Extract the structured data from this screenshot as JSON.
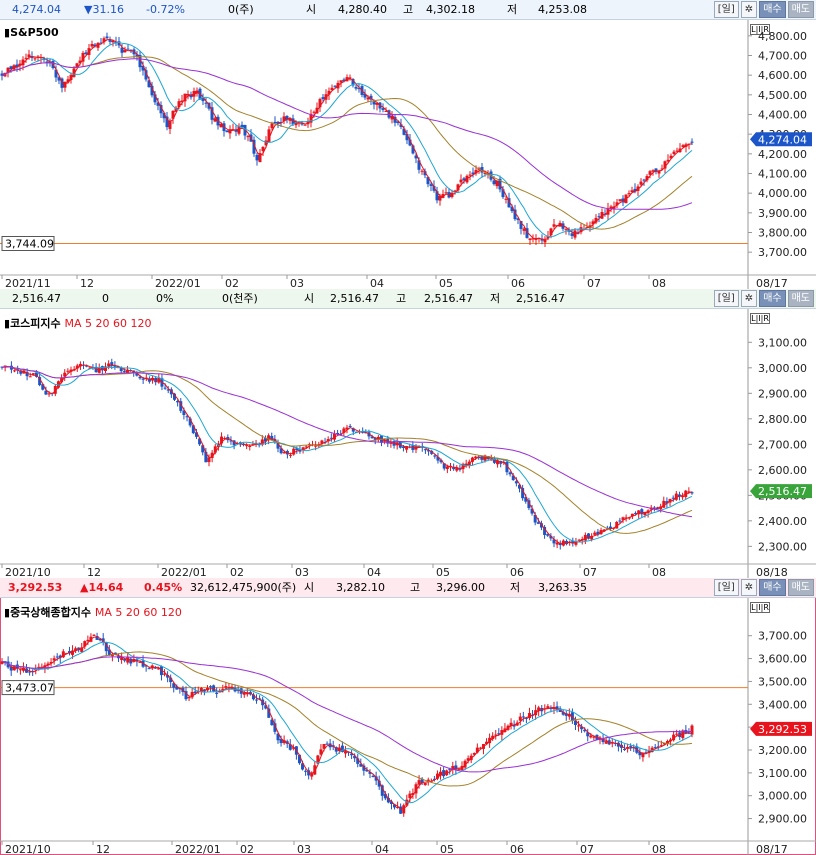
{
  "panels": [
    {
      "key": "sp",
      "header": {
        "price": "4,274.04",
        "change": "▼31.16",
        "pct": "-0.72%",
        "volume": "0(주)",
        "open_label": "시",
        "open": "4,280.40",
        "high_label": "고",
        "high": "4,302.18",
        "low_label": "저",
        "low": "4,253.08",
        "period": "[일]",
        "buy": "매수",
        "sell": "매도"
      },
      "title": "S&P500",
      "ma_label": "",
      "y_ticks": [
        "4,800.00",
        "4,700.00",
        "4,600.00",
        "4,500.00",
        "4,400.00",
        "4,300.00",
        "4,200.00",
        "4,100.00",
        "4,000.00",
        "3,900.00",
        "3,800.00",
        "3,700.00"
      ],
      "x_ticks": [
        "2021/11",
        "12",
        "2022/01",
        "02",
        "03",
        "04",
        "05",
        "06",
        "07",
        "08"
      ],
      "end_date": "08/17",
      "current_badge": "4,274.04",
      "ref_badge": "3,744.09",
      "colors": {
        "up": "#e8141d",
        "down": "#1c55c7",
        "ma5": "#e8141d",
        "ma20": "#1da7d4",
        "ma60": "#a5812b",
        "ma120": "#9b2fd6",
        "ref": "#f07c2c",
        "badge": "#1c55c7"
      }
    },
    {
      "key": "kospi",
      "header": {
        "price": "2,516.47",
        "change": "0",
        "pct": "0%",
        "volume": "0(천주)",
        "open_label": "시",
        "open": "2,516.47",
        "high_label": "고",
        "high": "2,516.47",
        "low_label": "저",
        "low": "2,516.47",
        "period": "[일]",
        "buy": "매수",
        "sell": "매도"
      },
      "title": "코스피지수",
      "ma_label": "MA 5 20 60 120",
      "y_ticks": [
        "3,100.00",
        "3,000.00",
        "2,900.00",
        "2,800.00",
        "2,700.00",
        "2,600.00",
        "2,500.00",
        "2,400.00",
        "2,300.00"
      ],
      "x_ticks": [
        "2021/10",
        "12",
        "2022/01",
        "02",
        "03",
        "04",
        "05",
        "06",
        "07",
        "08"
      ],
      "end_date": "08/18",
      "current_badge": "2,516.47",
      "colors": {
        "up": "#e8141d",
        "down": "#1c55c7",
        "ma5": "#e8141d",
        "ma20": "#1da7d4",
        "ma60": "#a5812b",
        "ma120": "#9b2fd6",
        "badge": "#38a43a"
      }
    },
    {
      "key": "sh",
      "header": {
        "price": "3,292.53",
        "change": "▲14.64",
        "pct": "0.45%",
        "volume": "32,612,475,900(주)",
        "open_label": "시",
        "open": "3,282.10",
        "high_label": "고",
        "high": "3,296.00",
        "low_label": "저",
        "low": "3,263.35",
        "period": "[일]",
        "buy": "매수",
        "sell": "매도"
      },
      "title": "중국상해종합지수",
      "ma_label": "MA 5 20 60 120",
      "y_ticks": [
        "3,700.00",
        "3,600.00",
        "3,500.00",
        "3,400.00",
        "3,300.00",
        "3,200.00",
        "3,100.00",
        "3,000.00",
        "2,900.00"
      ],
      "x_ticks": [
        "2021/10",
        "12",
        "2022/01",
        "02",
        "03",
        "04",
        "05",
        "06",
        "07",
        "08"
      ],
      "end_date": "08/17",
      "current_badge": "3,292.53",
      "ref_badge": "3,473.07",
      "colors": {
        "up": "#e8141d",
        "down": "#1c55c7",
        "ma5": "#e8141d",
        "ma20": "#1da7d4",
        "ma60": "#a5812b",
        "ma120": "#9b2fd6",
        "ref": "#f07c2c",
        "badge": "#e8141d"
      }
    }
  ],
  "chart_data": [
    {
      "type": "line",
      "title": "S&P500",
      "ylim": [
        3650,
        4850
      ],
      "reference_line": 3744.09,
      "last": 4274.04,
      "anchors": [
        [
          0,
          4600
        ],
        [
          10,
          4650
        ],
        [
          20,
          4700
        ],
        [
          30,
          4680
        ],
        [
          40,
          4550
        ],
        [
          50,
          4660
        ],
        [
          60,
          4750
        ],
        [
          70,
          4780
        ],
        [
          80,
          4730
        ],
        [
          90,
          4690
        ],
        [
          100,
          4500
        ],
        [
          110,
          4350
        ],
        [
          120,
          4480
        ],
        [
          130,
          4520
        ],
        [
          140,
          4390
        ],
        [
          150,
          4300
        ],
        [
          160,
          4340
        ],
        [
          170,
          4180
        ],
        [
          180,
          4350
        ],
        [
          190,
          4380
        ],
        [
          200,
          4340
        ],
        [
          210,
          4450
        ],
        [
          220,
          4530
        ],
        [
          230,
          4600
        ],
        [
          240,
          4500
        ],
        [
          250,
          4450
        ],
        [
          260,
          4380
        ],
        [
          270,
          4280
        ],
        [
          280,
          4100
        ],
        [
          290,
          3980
        ],
        [
          300,
          4000
        ],
        [
          310,
          4090
        ],
        [
          320,
          4120
        ],
        [
          330,
          4050
        ],
        [
          340,
          3900
        ],
        [
          350,
          3780
        ],
        [
          360,
          3760
        ],
        [
          370,
          3850
        ],
        [
          380,
          3800
        ],
        [
          390,
          3820
        ],
        [
          400,
          3890
        ],
        [
          410,
          3950
        ],
        [
          420,
          4000
        ],
        [
          430,
          4090
        ],
        [
          440,
          4130
        ],
        [
          450,
          4220
        ],
        [
          460,
          4274
        ]
      ]
    },
    {
      "type": "line",
      "title": "코스피지수",
      "ylim": [
        2270,
        3160
      ],
      "last": 2516.47,
      "anchors": [
        [
          0,
          3010
        ],
        [
          10,
          2990
        ],
        [
          20,
          2970
        ],
        [
          30,
          2890
        ],
        [
          40,
          2970
        ],
        [
          50,
          3020
        ],
        [
          60,
          2990
        ],
        [
          70,
          3010
        ],
        [
          80,
          2990
        ],
        [
          90,
          2960
        ],
        [
          100,
          2950
        ],
        [
          110,
          2880
        ],
        [
          120,
          2780
        ],
        [
          130,
          2640
        ],
        [
          140,
          2730
        ],
        [
          150,
          2700
        ],
        [
          160,
          2690
        ],
        [
          170,
          2730
        ],
        [
          180,
          2660
        ],
        [
          190,
          2680
        ],
        [
          200,
          2700
        ],
        [
          210,
          2730
        ],
        [
          220,
          2760
        ],
        [
          230,
          2750
        ],
        [
          240,
          2720
        ],
        [
          250,
          2700
        ],
        [
          260,
          2690
        ],
        [
          270,
          2680
        ],
        [
          280,
          2620
        ],
        [
          290,
          2600
        ],
        [
          300,
          2640
        ],
        [
          310,
          2650
        ],
        [
          320,
          2620
        ],
        [
          330,
          2520
        ],
        [
          340,
          2400
        ],
        [
          350,
          2320
        ],
        [
          360,
          2310
        ],
        [
          370,
          2330
        ],
        [
          380,
          2350
        ],
        [
          390,
          2380
        ],
        [
          400,
          2420
        ],
        [
          410,
          2440
        ],
        [
          420,
          2460
        ],
        [
          430,
          2500
        ],
        [
          440,
          2516
        ]
      ]
    },
    {
      "type": "line",
      "title": "중국상해종합지수",
      "ylim": [
        2850,
        3760
      ],
      "reference_line": 3473.07,
      "last": 3292.53,
      "anchors": [
        [
          0,
          3580
        ],
        [
          10,
          3550
        ],
        [
          20,
          3540
        ],
        [
          30,
          3570
        ],
        [
          40,
          3620
        ],
        [
          50,
          3650
        ],
        [
          60,
          3700
        ],
        [
          70,
          3630
        ],
        [
          80,
          3600
        ],
        [
          90,
          3580
        ],
        [
          100,
          3560
        ],
        [
          110,
          3500
        ],
        [
          120,
          3430
        ],
        [
          130,
          3470
        ],
        [
          140,
          3460
        ],
        [
          150,
          3470
        ],
        [
          160,
          3450
        ],
        [
          170,
          3400
        ],
        [
          180,
          3250
        ],
        [
          190,
          3200
        ],
        [
          200,
          3080
        ],
        [
          210,
          3230
        ],
        [
          220,
          3200
        ],
        [
          230,
          3160
        ],
        [
          240,
          3100
        ],
        [
          250,
          2980
        ],
        [
          260,
          2930
        ],
        [
          270,
          3050
        ],
        [
          280,
          3080
        ],
        [
          290,
          3100
        ],
        [
          300,
          3140
        ],
        [
          310,
          3200
        ],
        [
          320,
          3250
        ],
        [
          330,
          3300
        ],
        [
          340,
          3340
        ],
        [
          350,
          3380
        ],
        [
          360,
          3390
        ],
        [
          370,
          3350
        ],
        [
          380,
          3280
        ],
        [
          390,
          3250
        ],
        [
          400,
          3230
        ],
        [
          410,
          3200
        ],
        [
          420,
          3180
        ],
        [
          430,
          3230
        ],
        [
          440,
          3260
        ],
        [
          450,
          3292
        ]
      ]
    }
  ]
}
